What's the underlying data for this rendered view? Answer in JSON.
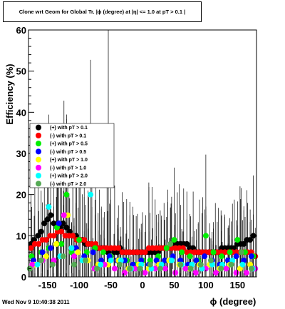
{
  "chart_data": {
    "type": "scatter",
    "title": "Clone wrt Geom for Global Tr. |ϕ (degree) at |η| <= 1.0 at pT > 0.1 |",
    "xlabel": "ϕ (degree)",
    "ylabel": "Efficiency (%)",
    "xlim": [
      -180,
      180
    ],
    "ylim": [
      0,
      60
    ],
    "xticks": [
      -150,
      -100,
      -50,
      0,
      50,
      100,
      150
    ],
    "yticks": [
      0,
      10,
      20,
      30,
      40,
      50,
      60
    ],
    "grid": false,
    "legend_position": "left-center",
    "series": [
      {
        "name": "(+) with pT > 0.1",
        "color": "#000000",
        "x": [
          -176,
          -171,
          -165,
          -160,
          -155,
          -150,
          -145,
          -140,
          -135,
          -130,
          -125,
          -120,
          -115,
          -110,
          -105,
          -100,
          -95,
          -90,
          -85,
          -80,
          -75,
          -70,
          -65,
          -60,
          -55,
          -50,
          -45,
          -40,
          -35,
          -30,
          -25,
          -20,
          -15,
          -10,
          -5,
          0,
          5,
          10,
          15,
          20,
          25,
          30,
          35,
          40,
          45,
          50,
          55,
          60,
          65,
          70,
          75,
          80,
          85,
          90,
          95,
          100,
          105,
          110,
          115,
          120,
          125,
          130,
          135,
          140,
          145,
          150,
          155,
          160,
          165,
          170,
          175
        ],
        "y": [
          8,
          9,
          10,
          11,
          13,
          14,
          15,
          13,
          12,
          12,
          13,
          12,
          11,
          10,
          10,
          9,
          9,
          8,
          8,
          8,
          7,
          7,
          7,
          7,
          6,
          7,
          6,
          6,
          7,
          6,
          6,
          6,
          6,
          6,
          6,
          6,
          6,
          6,
          6,
          6,
          6,
          7,
          7,
          7,
          7,
          8,
          8,
          8,
          8,
          8,
          7,
          7,
          6,
          6,
          6,
          6,
          6,
          6,
          6,
          6,
          7,
          7,
          7,
          7,
          7,
          8,
          8,
          8,
          9,
          9,
          10
        ]
      },
      {
        "name": "(-) with pT > 0.1",
        "color": "#ff0000",
        "x": [
          -176,
          -170,
          -164,
          -158,
          -152,
          -146,
          -140,
          -134,
          -128,
          -122,
          -116,
          -110,
          -104,
          -98,
          -92,
          -86,
          -80,
          -74,
          -68,
          -62,
          -56,
          -50,
          -44,
          -38,
          -32,
          -26,
          -20,
          -14,
          -8,
          -2,
          4,
          10,
          16,
          22,
          28,
          34,
          40,
          46,
          52,
          58,
          64,
          70,
          76,
          82,
          88,
          94,
          100,
          106,
          112,
          118,
          124,
          130,
          136,
          142,
          148,
          154,
          160,
          166,
          172,
          178
        ],
        "y": [
          7,
          8,
          8,
          9,
          9,
          10,
          10,
          11,
          11,
          10,
          10,
          10,
          9,
          9,
          9,
          8,
          8,
          8,
          7,
          7,
          7,
          7,
          7,
          7,
          6,
          6,
          6,
          6,
          6,
          6,
          6,
          7,
          7,
          7,
          7,
          7,
          7,
          7,
          7,
          7,
          7,
          6,
          6,
          6,
          6,
          6,
          6,
          6,
          6,
          6,
          6,
          6,
          6,
          6,
          6,
          6,
          6,
          6,
          6,
          5
        ]
      },
      {
        "name": "(+) with pT > 0.5",
        "color": "#00ee00",
        "x": [
          -175,
          -160,
          -148,
          -135,
          -128,
          -120,
          -112,
          -100,
          -88,
          -75,
          -62,
          -50,
          -38,
          -25,
          -12,
          0,
          12,
          25,
          38,
          50,
          62,
          75,
          88,
          100,
          112,
          125,
          138,
          150,
          162,
          175
        ],
        "y": [
          5,
          6,
          7,
          12,
          8,
          20,
          6,
          9,
          6,
          7,
          6,
          5,
          4,
          4,
          3,
          4,
          4,
          5,
          7,
          9,
          6,
          5,
          4,
          10,
          6,
          5,
          6,
          9,
          6,
          5
        ]
      },
      {
        "name": "(-) with pT > 0.5",
        "color": "#0000ff",
        "x": [
          -172,
          -158,
          -145,
          -132,
          -118,
          -105,
          -92,
          -78,
          -65,
          -52,
          -40,
          -28,
          -15,
          -2,
          10,
          22,
          35,
          48,
          60,
          72,
          85,
          98,
          110,
          122,
          135,
          148,
          160,
          172
        ],
        "y": [
          4,
          6,
          7,
          13,
          15,
          7,
          5,
          6,
          4,
          5,
          4,
          4,
          3,
          4,
          3,
          4,
          4,
          5,
          4,
          3,
          4,
          5,
          4,
          3,
          4,
          5,
          4,
          5
        ]
      },
      {
        "name": "(+) with pT > 1.0",
        "color": "#ffff00",
        "x": [
          -170,
          -152,
          -136,
          -118,
          -102,
          -86,
          -70,
          -54,
          -38,
          -22,
          -6,
          10,
          26,
          42,
          58,
          74,
          90,
          106,
          122,
          138,
          154,
          170
        ],
        "y": [
          3,
          5,
          8,
          15,
          6,
          4,
          3,
          3,
          4,
          2,
          3,
          2,
          3,
          4,
          3,
          2,
          3,
          3,
          2,
          3,
          2,
          3
        ]
      },
      {
        "name": "(-) with pT > 1.0",
        "color": "#ff00ff",
        "x": [
          -174,
          -158,
          -140,
          -124,
          -108,
          -92,
          -76,
          -60,
          -44,
          -28,
          -12,
          4,
          20,
          36,
          52,
          68,
          84,
          100,
          116,
          132,
          148,
          164,
          178
        ],
        "y": [
          3,
          4,
          4,
          15,
          5,
          4,
          2,
          3,
          2,
          1,
          2,
          1,
          2,
          2,
          1,
          2,
          1,
          2,
          1,
          2,
          1,
          1,
          2
        ]
      },
      {
        "name": "(+) with pT > 2.0",
        "color": "#00ffff",
        "x": [
          -166,
          -148,
          -130,
          -112,
          -95,
          -82,
          -66,
          -50,
          -34,
          -18,
          -2,
          14,
          30,
          46,
          62,
          78,
          94,
          110,
          126,
          142,
          158,
          174
        ],
        "y": [
          3,
          17,
          5,
          7,
          4,
          20,
          3,
          4,
          4,
          2,
          3,
          2,
          3,
          4,
          3,
          3,
          2,
          3,
          3,
          4,
          3,
          2
        ]
      },
      {
        "name": "(-) with pT > 2.0",
        "color": "#55aa55",
        "x": [
          -178,
          -160,
          -142,
          -125,
          -108,
          -90,
          -72,
          -54,
          -36,
          -20,
          -4,
          12,
          28,
          44,
          60,
          76,
          92,
          108,
          124,
          140,
          156,
          172
        ],
        "y": [
          2,
          4,
          3,
          5,
          3,
          4,
          2,
          25,
          3,
          2,
          2,
          3,
          2,
          8,
          3,
          2,
          3,
          4,
          2,
          3,
          6,
          2
        ]
      }
    ]
  },
  "footer": {
    "timestamp": "Wed Nov  9 10:40:38 2011"
  },
  "colors": {
    "frame": "#000000",
    "legend_bg": "#ffffff"
  }
}
